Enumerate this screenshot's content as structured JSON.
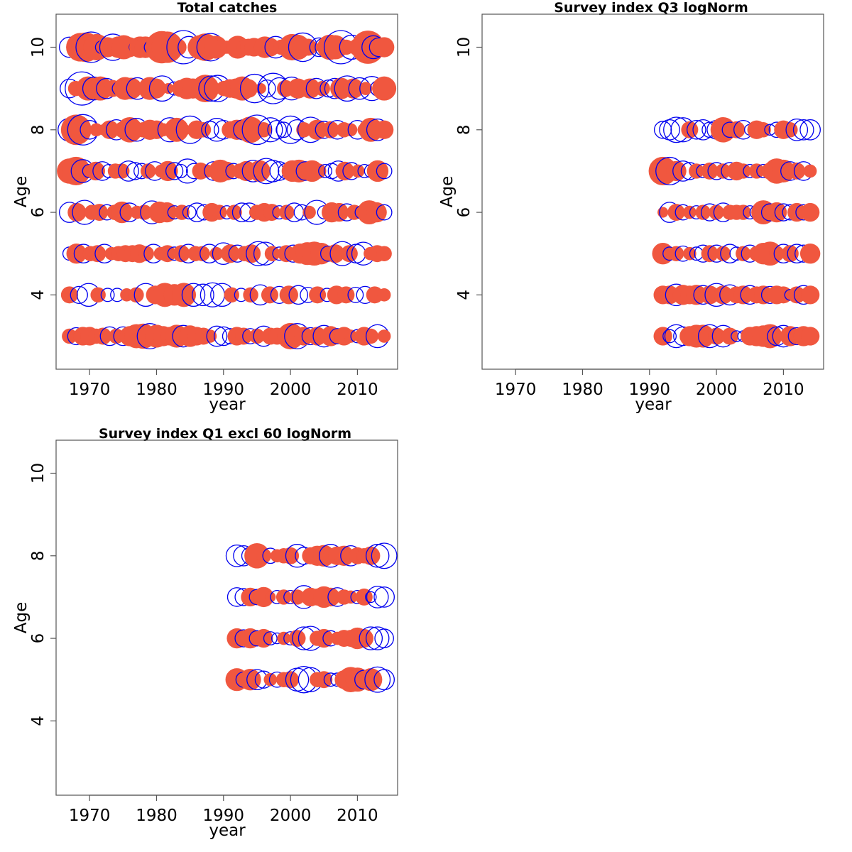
{
  "colors": {
    "positive": "#F0573F",
    "negative": "#0000F0",
    "frame": "#555555"
  },
  "chart_data": [
    {
      "type": "scatter",
      "title": "Total catches",
      "xlabel": "year",
      "ylabel": "Age",
      "xlim": [
        1965,
        2016
      ],
      "ylim": [
        2.2,
        10.8
      ],
      "xticks": [
        "1970",
        "1980",
        "1990",
        "2000",
        "2010"
      ],
      "yticks": [
        "4",
        "6",
        "8",
        "10"
      ],
      "ages": [
        3,
        4,
        5,
        6,
        7,
        8,
        9,
        10
      ],
      "years": [
        1967,
        2014
      ],
      "residuals": {
        "10": [
          -0.7,
          0.4,
          1.4,
          1.5,
          -1.6,
          1.2,
          -0.3,
          0.7,
          -1.2,
          0.8,
          1.0,
          0.7,
          -0.2,
          0.8,
          0.8,
          -0.3,
          0.7,
          1.8,
          1.7,
          0.9,
          0.5,
          -1.9,
          -0.8,
          0.3,
          1.0,
          1.3,
          -1.3,
          0.9,
          0.4,
          0.3,
          0.2,
          0.9,
          0.3,
          0.5,
          0.6,
          0.3,
          0.8,
          0.6,
          -0.8,
          0.4,
          0.4,
          1.2,
          1.1,
          -1.4,
          0.5,
          0.2,
          -0.6,
          -0.6,
          1.1,
          1.0,
          -1.9,
          0.4,
          -1.0,
          0.5,
          0.7,
          1.9,
          -0.9,
          -0.6,
          0.7
        ],
        "9": [
          -0.6,
          0.4,
          -1.9,
          1.0,
          -0.9,
          1.0,
          -0.7,
          0.5,
          -0.3,
          0.9,
          0.8,
          -0.8,
          0.3,
          0.9,
          0.7,
          -1.1,
          0.2,
          -0.3,
          0.5,
          0.8,
          0.7,
          0.6,
          1.3,
          -1.1,
          -1.2,
          0.4,
          0.6,
          0.7,
          1.0,
          0.6,
          -1.4,
          0.2,
          -0.5,
          -1.6,
          -0.8,
          0.5,
          -0.9,
          0.7,
          0.3,
          0.7,
          -0.7,
          0.4,
          -0.5,
          -0.7,
          0.8,
          -1.1,
          0.7,
          -0.8,
          0.3,
          -1.0,
          -0.4,
          1.0
        ],
        "8": [
          -0.9,
          1.6,
          -1.6,
          -0.6,
          0.3,
          0.2,
          0.6,
          -0.7,
          0.5,
          1.1,
          -0.9,
          0.4,
          0.7,
          0.6,
          0.3,
          -1.0,
          1.0,
          0.3,
          -1.3,
          0.6,
          0.4,
          -0.5,
          -0.9,
          -0.6,
          0.5,
          0.7,
          -0.7,
          1.2,
          -1.5,
          0.4,
          -1.0,
          -0.6,
          -0.4,
          -1.3,
          -0.7,
          0.4,
          -1.1,
          0.7,
          -0.5,
          0.5,
          -0.6,
          0.4,
          0.3,
          -0.6,
          0.3,
          1.0,
          -0.8,
          0.6
        ],
        "7": [
          1.1,
          1.4,
          -0.9,
          -0.3,
          0.6,
          -0.6,
          -0.3,
          0.4,
          0.4,
          -0.7,
          -0.5,
          -0.4,
          0.4,
          -0.6,
          0.3,
          0.7,
          -0.5,
          -0.3,
          -1.0,
          -0.4,
          0.5,
          0.3,
          -0.6,
          0.9,
          0.6,
          -0.4,
          0.4,
          0.7,
          -0.8,
          0.8,
          -1.1,
          -0.8,
          -0.6,
          -0.4,
          0.8,
          0.9,
          -0.6,
          0.8,
          0.4,
          -0.3,
          -0.4,
          -0.7,
          0.6,
          -0.5,
          0.3,
          -0.3,
          -0.3,
          0.8,
          -0.4
        ],
        "6": [
          -0.7,
          0.6,
          -1.0,
          0.4,
          0.5,
          -0.4,
          0.4,
          0.8,
          -0.6,
          0.3,
          0.4,
          -0.9,
          0.8,
          0.7,
          -0.3,
          0.4,
          -0.3,
          -0.6,
          -0.4,
          0.6,
          0.4,
          -0.3,
          0.4,
          -0.6,
          -0.6,
          0.4,
          0.6,
          0.5,
          -0.3,
          0.4,
          -0.6,
          -0.4,
          0.3,
          -1.0,
          -0.3,
          0.7,
          0.6,
          -0.5,
          0.4,
          -0.3,
          1.0,
          0.7,
          -0.4
        ],
        "5": [
          -0.3,
          0.7,
          -0.6,
          0.4,
          0.5,
          -0.6,
          0.3,
          0.4,
          0.5,
          0.5,
          0.6,
          0.4,
          -0.6,
          0.3,
          0.5,
          -0.3,
          0.5,
          -0.6,
          0.4,
          0.4,
          -0.6,
          0.3,
          -0.8,
          0.6,
          -0.5,
          0.4,
          0.6,
          -1.0,
          -0.9,
          0.4,
          -0.3,
          0.5,
          -0.5,
          0.7,
          0.9,
          1.0,
          0.8,
          -0.4,
          0.6,
          -1.0,
          0.5,
          -0.6,
          -0.9,
          0.3,
          0.5,
          0.4
        ],
        "4": [
          0.5,
          -0.5,
          -0.9,
          0.4,
          -0.3,
          -0.3,
          0.3,
          0.4,
          -0.9,
          0.6,
          1.0,
          0.8,
          1.0,
          -0.9,
          -0.8,
          -1.0,
          -0.9,
          0.4,
          -0.3,
          0.4,
          -0.7,
          0.5,
          -0.5,
          0.6,
          -0.6,
          -0.4,
          0.5,
          -0.3,
          0.6,
          0.5,
          -0.4,
          -0.5,
          0.5,
          0.3
        ],
        "3": [
          0.4,
          -0.5,
          0.6,
          0.6,
          0.4,
          0.5,
          -0.6,
          0.4,
          -0.6,
          0.7,
          1.0,
          1.1,
          -1.1,
          0.9,
          0.7,
          0.6,
          0.9,
          -0.8,
          0.8,
          0.6,
          0.5,
          0.3,
          -0.7,
          -0.6,
          -0.4,
          0.6,
          0.5,
          -0.4,
          0.4,
          -0.7,
          0.5,
          0.5,
          0.3,
          1.2,
          -1.1,
          0.6,
          -0.5,
          0.6,
          -0.8,
          0.7,
          -0.4,
          0.6,
          0.3,
          -0.3,
          0.6,
          0.4,
          -0.9,
          0.3
        ]
      }
    },
    {
      "type": "scatter",
      "title": "Survey index Q3 logNorm",
      "xlabel": "year",
      "ylabel": "Age",
      "xlim": [
        1965,
        2016
      ],
      "ylim": [
        2.2,
        10.8
      ],
      "xticks": [
        "1970",
        "1980",
        "1990",
        "2000",
        "2010"
      ],
      "yticks": [
        "4",
        "6",
        "8",
        "10"
      ],
      "ages": [
        3,
        4,
        5,
        6,
        7,
        8
      ],
      "years": [
        1992,
        2014
      ],
      "residuals": {
        "8": [
          -0.5,
          -0.7,
          -1.1,
          -1.0,
          0.5,
          -0.6,
          -0.7,
          -0.4,
          -0.6,
          1.1,
          -0.4,
          0.5,
          -0.6,
          -0.2,
          0.6,
          0.4,
          -0.2,
          -0.4,
          0.6,
          0.4,
          -0.8,
          -0.7,
          -0.7
        ],
        "7": [
          1.4,
          -1.3,
          0.7,
          -0.7,
          -0.5,
          0.4,
          -0.3,
          0.5,
          -0.5,
          0.4,
          -0.5,
          0.6,
          0.4,
          -0.3,
          0.4,
          -0.3,
          0.5,
          1.1,
          0.9,
          -0.6,
          0.5,
          -0.6,
          0.3
        ],
        "6": [
          0.2,
          -0.7,
          0.5,
          -0.4,
          0.3,
          -0.3,
          0.4,
          -0.5,
          0.4,
          -0.6,
          0.4,
          0.4,
          0.4,
          -0.3,
          -0.3,
          1.0,
          -0.5,
          0.7,
          -0.5,
          -0.4,
          0.6,
          -0.4,
          0.6
        ],
        "5": [
          0.8,
          -0.3,
          0.4,
          -0.4,
          0.3,
          -0.3,
          -0.5,
          0.5,
          -0.5,
          0.4,
          -0.6,
          -0.3,
          0.4,
          -0.5,
          0.4,
          0.8,
          1.0,
          0.4,
          -0.6,
          0.5,
          -0.6,
          -0.5,
          0.7
        ],
        "4": [
          0.6,
          0.6,
          -0.8,
          0.7,
          0.6,
          0.7,
          -0.6,
          0.6,
          -0.9,
          0.6,
          -0.7,
          0.5,
          0.6,
          -0.6,
          0.5,
          0.6,
          -0.5,
          0.6,
          0.5,
          -0.2,
          0.5,
          -0.6,
          0.6
        ],
        "3": [
          0.6,
          -0.3,
          -0.9,
          -0.6,
          0.7,
          0.9,
          0.9,
          -0.9,
          0.5,
          -0.8,
          0.5,
          -0.2,
          -0.2,
          0.6,
          0.7,
          0.8,
          1.0,
          -0.6,
          -0.8,
          0.7,
          -0.5,
          0.7,
          0.6
        ]
      }
    },
    {
      "type": "scatter",
      "title": "Survey index Q1 excl 60 logNorm",
      "xlabel": "year",
      "ylabel": "Age",
      "xlim": [
        1965,
        2016
      ],
      "ylim": [
        2.2,
        10.8
      ],
      "xticks": [
        "1970",
        "1980",
        "1990",
        "2000",
        "2010"
      ],
      "yticks": [
        "4",
        "6",
        "8",
        "10"
      ],
      "ages": [
        5,
        6,
        7,
        8
      ],
      "years": [
        1992,
        2014
      ],
      "residuals": {
        "8": [
          -0.8,
          -0.7,
          -0.5,
          1.1,
          0.4,
          -0.4,
          0.3,
          0.4,
          0.5,
          -0.9,
          -0.5,
          0.5,
          0.7,
          0.8,
          -0.9,
          0.6,
          0.7,
          -0.7,
          0.5,
          0.4,
          0.6,
          -0.9,
          -1.1
        ],
        "7": [
          -0.6,
          -0.5,
          0.6,
          -0.4,
          0.7,
          0.2,
          -0.3,
          0.4,
          -0.3,
          0.4,
          -0.9,
          0.6,
          0.5,
          0.8,
          0.6,
          -0.6,
          0.4,
          0.3,
          -0.3,
          0.5,
          -0.2,
          -0.8,
          -0.7
        ],
        "6": [
          0.7,
          -0.5,
          0.7,
          -0.4,
          0.6,
          -0.3,
          -0.2,
          0.3,
          -0.3,
          0.5,
          -0.9,
          -1.0,
          0.4,
          0.6,
          -0.4,
          0.3,
          0.5,
          0.5,
          0.8,
          0.6,
          -0.9,
          -0.9,
          -0.6
        ],
        "5": [
          0.9,
          -0.4,
          0.8,
          -0.7,
          -0.5,
          0.3,
          -0.4,
          0.4,
          0.5,
          -0.9,
          -1.2,
          -1.0,
          0.4,
          0.5,
          -0.3,
          -0.3,
          0.6,
          1.1,
          1.0,
          -0.6,
          0.9,
          -1.1,
          -0.7
        ]
      }
    }
  ]
}
